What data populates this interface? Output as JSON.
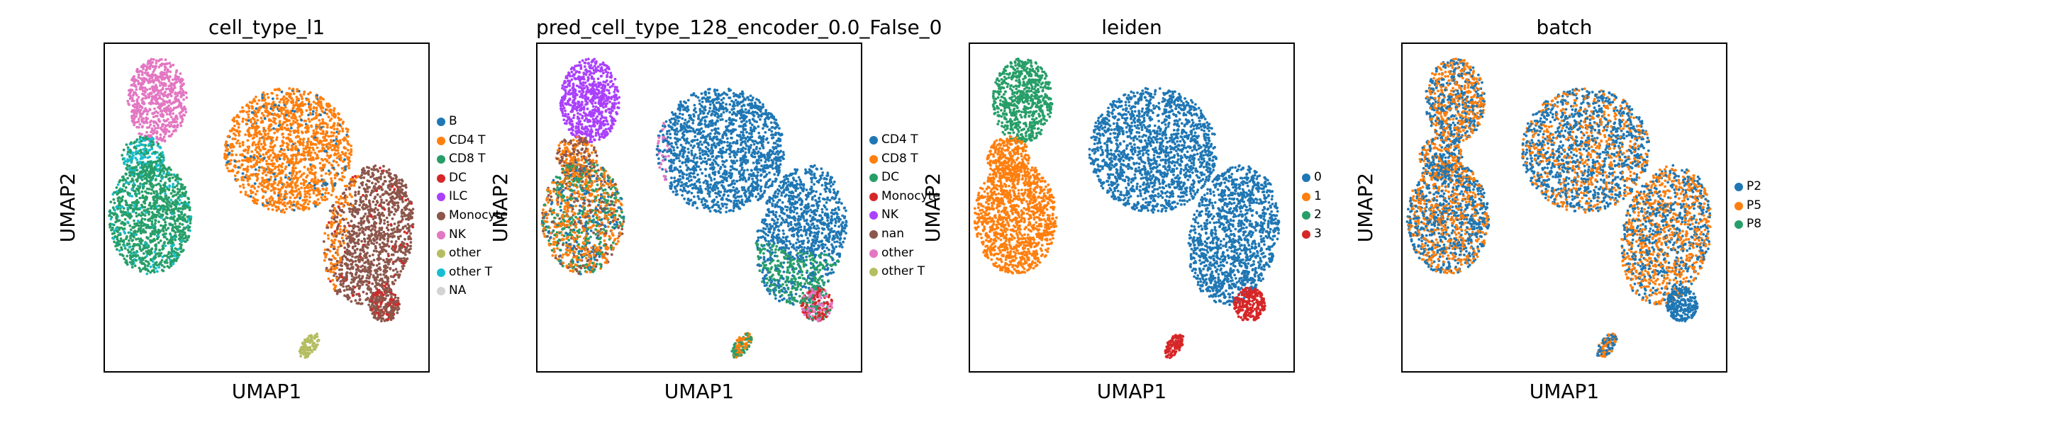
{
  "palette": {
    "0": "#1f77b4",
    "1": "#ff7f0e",
    "2": "#279e68",
    "3": "#d62728",
    "4": "#aa40fc",
    "5": "#8c564b",
    "6": "#e377c2",
    "7": "#b5bd61",
    "8": "#17becf",
    "na": "#d3d3d3"
  },
  "chart_data": [
    {
      "type": "scatter",
      "title": "cell_type_l1",
      "xlabel": "UMAP1",
      "ylabel": "UMAP2",
      "legend": {
        "placement": "right",
        "entries": [
          {
            "label": "B",
            "color": "#1f77b4"
          },
          {
            "label": "CD4 T",
            "color": "#ff7f0e"
          },
          {
            "label": "CD8 T",
            "color": "#279e68"
          },
          {
            "label": "DC",
            "color": "#d62728"
          },
          {
            "label": "ILC",
            "color": "#aa40fc"
          },
          {
            "label": "Monocyte",
            "color": "#8c564b"
          },
          {
            "label": "NK",
            "color": "#e377c2"
          },
          {
            "label": "other",
            "color": "#b5bd61"
          },
          {
            "label": "other T",
            "color": "#17becf"
          },
          {
            "label": "NA",
            "color": "#d3d3d3"
          }
        ]
      }
    },
    {
      "type": "scatter",
      "title": "pred_cell_type_128_encoder_0.0_False_0",
      "xlabel": "UMAP1",
      "ylabel": "UMAP2",
      "legend": {
        "placement": "right",
        "entries": [
          {
            "label": "CD4 T",
            "color": "#1f77b4"
          },
          {
            "label": "CD8 T",
            "color": "#ff7f0e"
          },
          {
            "label": "DC",
            "color": "#279e68"
          },
          {
            "label": "Monocyte",
            "color": "#d62728"
          },
          {
            "label": "NK",
            "color": "#aa40fc"
          },
          {
            "label": "nan",
            "color": "#8c564b"
          },
          {
            "label": "other",
            "color": "#e377c2"
          },
          {
            "label": "other T",
            "color": "#b5bd61"
          }
        ]
      }
    },
    {
      "type": "scatter",
      "title": "leiden",
      "xlabel": "UMAP1",
      "ylabel": "UMAP2",
      "legend": {
        "placement": "right",
        "entries": [
          {
            "label": "0",
            "color": "#1f77b4"
          },
          {
            "label": "1",
            "color": "#ff7f0e"
          },
          {
            "label": "2",
            "color": "#279e68"
          },
          {
            "label": "3",
            "color": "#d62728"
          }
        ]
      }
    },
    {
      "type": "scatter",
      "title": "batch",
      "xlabel": "UMAP1",
      "ylabel": "UMAP2",
      "legend": {
        "placement": "right",
        "entries": [
          {
            "label": "P2",
            "color": "#1f77b4"
          },
          {
            "label": "P5",
            "color": "#ff7f0e"
          },
          {
            "label": "P8",
            "color": "#279e68"
          }
        ]
      }
    }
  ]
}
